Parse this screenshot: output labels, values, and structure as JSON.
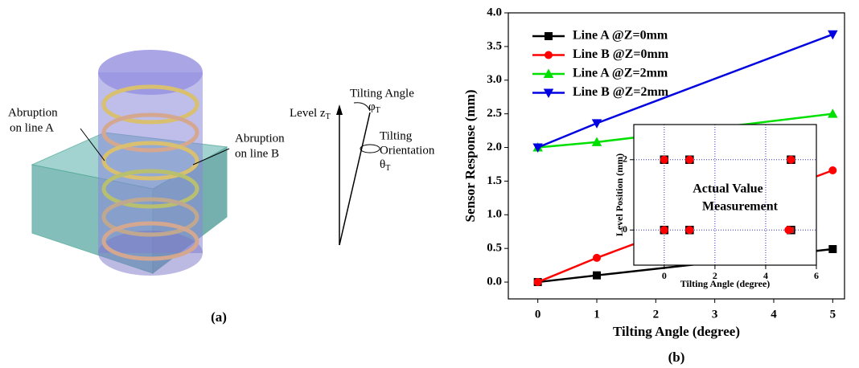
{
  "panel_a": {
    "label_a_lines": [
      "Abruption",
      "on line A"
    ],
    "label_b_lines": [
      "Abruption",
      "on line B"
    ],
    "level": "Level z",
    "level_sub": "T",
    "tilt_angle": "Tilting Angle",
    "phi": "φ",
    "phi_sub": "T",
    "tilt_orient_lines": [
      "Tilting",
      "Orientation"
    ],
    "theta": "θ",
    "theta_sub": "T",
    "caption": "(a)"
  },
  "chart_data": [
    {
      "type": "line",
      "caption": "(b)",
      "x_label": "Tilting Angle (degree)",
      "y_label": "Sensor Response (mm)",
      "x": [
        0,
        1,
        5
      ],
      "xlim": [
        -0.5,
        5.2
      ],
      "xticks": [
        0,
        1,
        2,
        3,
        4,
        5
      ],
      "ylim": [
        -0.25,
        4.0
      ],
      "yticks": [
        {
          "value": 0,
          "label": "0.0"
        },
        {
          "value": 0.5,
          "label": "0.5"
        },
        {
          "value": 1,
          "label": "1.0"
        },
        {
          "value": 1.5,
          "label": "1.5"
        },
        {
          "value": 2,
          "label": "2.0"
        },
        {
          "value": 2.5,
          "label": "2.5"
        },
        {
          "value": 3,
          "label": "3.0"
        },
        {
          "value": 3.5,
          "label": "3.5"
        },
        {
          "value": 4,
          "label": "4.0"
        }
      ],
      "legend": "upper left",
      "series": [
        {
          "name": "Line A @Z=0mm",
          "color": "#000000",
          "marker": "square",
          "values": [
            0,
            0.1,
            0.49
          ]
        },
        {
          "name": "Line B @Z=0mm",
          "color": "#ff0000",
          "marker": "circle",
          "values": [
            0,
            0.36,
            1.66
          ]
        },
        {
          "name": "Line A @Z=2mm",
          "color": "#00e000",
          "marker": "triangle-up",
          "values": [
            2.0,
            2.08,
            2.5
          ]
        },
        {
          "name": "Line B @Z=2mm",
          "color": "#0000e0",
          "marker": "triangle-down",
          "values": [
            2.0,
            2.36,
            3.68
          ]
        }
      ]
    },
    {
      "type": "scatter",
      "x_label": "Tilting Angle (degree)",
      "y_label": "Level Position (mm)",
      "xlim": [
        -1.2,
        6
      ],
      "xticks": [
        0,
        2,
        4,
        6
      ],
      "ylim": [
        -1,
        3
      ],
      "yticks": [
        0,
        2
      ],
      "grid": true,
      "series": [
        {
          "name": "Actual Value",
          "color": "#000000",
          "marker": "square",
          "x": [
            0,
            1,
            5,
            0,
            1,
            5
          ],
          "values": [
            0,
            0,
            0,
            2,
            2,
            2
          ]
        },
        {
          "name": "Measurement",
          "color": "#ff0000",
          "marker": "circle",
          "x": [
            0,
            1,
            4.9,
            0,
            1,
            5
          ],
          "values": [
            0,
            0,
            0,
            2,
            2,
            2
          ]
        }
      ]
    }
  ]
}
